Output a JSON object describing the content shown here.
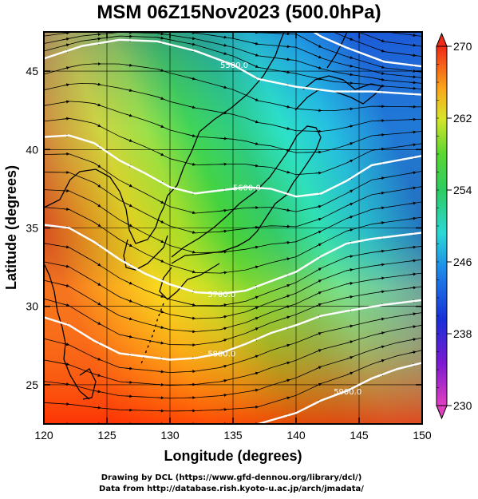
{
  "title": "MSM 06Z15Nov2023 (500.0hPa)",
  "x_axis": {
    "label": "Longitude (degrees)",
    "range": [
      120,
      150
    ],
    "ticks": [
      "120",
      "125",
      "130",
      "135",
      "140",
      "145",
      "150"
    ]
  },
  "y_axis": {
    "label": "Latitude  (degrees)",
    "range": [
      22.5,
      47.5
    ],
    "ticks": [
      "25",
      "30",
      "35",
      "40",
      "45"
    ]
  },
  "colorbar": {
    "min": 230,
    "max": 270,
    "labels": [
      "270",
      "262",
      "254",
      "246",
      "238",
      "230"
    ]
  },
  "contours": [
    {
      "label": "5500.0",
      "points": [
        [
          120,
          45.8
        ],
        [
          123,
          46.6
        ],
        [
          126,
          47.0
        ],
        [
          129,
          46.9
        ],
        [
          132,
          46.3
        ],
        [
          135,
          45.4
        ],
        [
          137,
          44.5
        ],
        [
          140,
          44.0
        ],
        [
          143,
          43.7
        ],
        [
          146,
          43.7
        ],
        [
          150,
          43.5
        ]
      ]
    },
    {
      "label": "5600.0",
      "points": [
        [
          120,
          40.8
        ],
        [
          122,
          40.9
        ],
        [
          124,
          40.4
        ],
        [
          126,
          39.3
        ],
        [
          128,
          38.5
        ],
        [
          130,
          37.6
        ],
        [
          132,
          37.2
        ],
        [
          134,
          37.4
        ],
        [
          136,
          37.6
        ],
        [
          138,
          37.5
        ],
        [
          140,
          37.0
        ],
        [
          142,
          37.2
        ],
        [
          144,
          38.0
        ],
        [
          146,
          39.0
        ],
        [
          148,
          39.3
        ],
        [
          150,
          39.6
        ]
      ]
    },
    {
      "label": "5700.0",
      "points": [
        [
          120,
          35.2
        ],
        [
          122,
          35.0
        ],
        [
          124,
          34.1
        ],
        [
          126,
          33.0
        ],
        [
          128,
          32.1
        ],
        [
          130,
          31.4
        ],
        [
          132,
          30.9
        ],
        [
          134,
          30.8
        ],
        [
          136,
          31.0
        ],
        [
          138,
          31.6
        ],
        [
          140,
          32.2
        ],
        [
          142,
          33.2
        ],
        [
          144,
          34.0
        ],
        [
          146,
          34.3
        ],
        [
          150,
          34.7
        ]
      ]
    },
    {
      "label": "5800.0",
      "points": [
        [
          120,
          29.3
        ],
        [
          122,
          28.8
        ],
        [
          124,
          27.8
        ],
        [
          126,
          27.0
        ],
        [
          128,
          26.8
        ],
        [
          130,
          26.6
        ],
        [
          132,
          26.7
        ],
        [
          134,
          27.0
        ],
        [
          136,
          27.6
        ],
        [
          138,
          28.3
        ],
        [
          140,
          28.8
        ],
        [
          142,
          29.4
        ],
        [
          144,
          29.7
        ],
        [
          147,
          30.1
        ],
        [
          150,
          30.4
        ]
      ]
    },
    {
      "label": "5900.0",
      "points": [
        [
          137,
          22.5
        ],
        [
          140,
          23.2
        ],
        [
          142,
          24.0
        ],
        [
          144,
          24.6
        ],
        [
          146,
          25.4
        ],
        [
          148,
          26.0
        ],
        [
          150,
          26.4
        ]
      ]
    },
    {
      "label": "",
      "points": [
        [
          140,
          48.2
        ],
        [
          142,
          47.2
        ],
        [
          144,
          46.5
        ],
        [
          147,
          45.6
        ],
        [
          150,
          45.3
        ]
      ]
    }
  ],
  "colors": {
    "frame": "#000000",
    "contour": "#ffffff",
    "coast": "#000000",
    "arrows": "#000000"
  },
  "credits": {
    "line1": "Drawing by DCL (https://www.gfd-dennou.org/library/dcl/)",
    "line2": "Data from http://database.rish.kyoto-u.ac.jp/arch/jmadata/"
  }
}
